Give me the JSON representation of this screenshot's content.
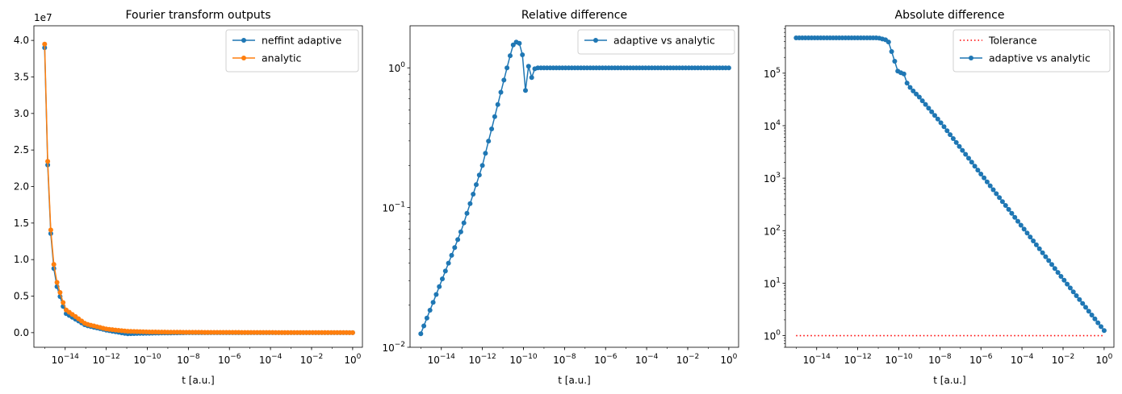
{
  "chart_data": [
    {
      "type": "line",
      "title": "Fourier transform outputs",
      "xlabel": "t [a.u.]",
      "ylabel": "",
      "xscale": "log",
      "yscale": "linear",
      "y_offset_label": "1e7",
      "xlim": [
        3e-16,
        3
      ],
      "ylim": [
        -2000000,
        42000000
      ],
      "xticks": [
        "10^-14",
        "10^-12",
        "10^-10",
        "10^-8",
        "10^-6",
        "10^-4",
        "10^-2",
        "10^0"
      ],
      "yticks": [
        "0.0",
        "0.5",
        "1.0",
        "1.5",
        "2.0",
        "2.5",
        "3.0",
        "3.5",
        "4.0"
      ],
      "legend": "top-right",
      "grid": false,
      "x_exponent_range": [
        -15,
        0
      ],
      "points_per_series": 101,
      "series": [
        {
          "name": "neffint adaptive",
          "color": "#1f77b4",
          "marker": "circle",
          "sample_x": [
            1e-15,
            1.12e-15,
            1.26e-15,
            1.41e-15,
            1.58e-15,
            2e-15,
            3.16e-15,
            1e-14,
            1e-13,
            1e-12,
            1e-11,
            1e-10,
            1e-08,
            1
          ],
          "sample_y": [
            39000000,
            32800000,
            27500000,
            23000000,
            19200000,
            13500000,
            7200000,
            2700000,
            1000000,
            350000,
            -150000,
            -80000,
            0,
            0
          ]
        },
        {
          "name": "analytic",
          "color": "#ff7f0e",
          "marker": "circle",
          "sample_x": [
            1e-15,
            1.12e-15,
            1.26e-15,
            1.41e-15,
            1.58e-15,
            2e-15,
            3.16e-15,
            1e-14,
            1e-13,
            1e-12,
            1e-11,
            1e-10,
            1e-08,
            1
          ],
          "sample_y": [
            39500000,
            33300000,
            28000000,
            23500000,
            19700000,
            14000000,
            7800000,
            3200000,
            1200000,
            500000,
            200000,
            100000,
            50000,
            0
          ]
        }
      ]
    },
    {
      "type": "line",
      "title": "Relative difference",
      "xlabel": "t [a.u.]",
      "ylabel": "",
      "xscale": "log",
      "yscale": "log",
      "xlim": [
        3e-16,
        3
      ],
      "ylim": [
        0.01,
        2
      ],
      "xticks": [
        "10^-14",
        "10^-12",
        "10^-10",
        "10^-8",
        "10^-6",
        "10^-4",
        "10^-2",
        "10^0"
      ],
      "yticks": [
        "10^-2",
        "10^-1",
        "10^0"
      ],
      "legend": "top-right",
      "grid": false,
      "x_exponent_range": [
        -15,
        0
      ],
      "points_per_series": 101,
      "series": [
        {
          "name": "adaptive vs analytic",
          "color": "#1f77b4",
          "marker": "circle",
          "sample_x": [
            1e-15,
            1e-13,
            1e-12,
            3e-11,
            5e-11,
            8e-11,
            1e-10,
            1.3e-10,
            1.6e-10,
            2e-10,
            2.5e-10,
            3.2e-10,
            4e-10,
            5e-10,
            1e-09,
            1e-08,
            1e-06,
            1
          ],
          "sample_y": [
            0.0125,
            0.07,
            0.2,
            1.45,
            1.55,
            1.45,
            1.05,
            0.65,
            0.95,
            1.12,
            0.85,
            0.97,
            1.0,
            1.0,
            1.0,
            1.0,
            1.0,
            1.0
          ]
        }
      ]
    },
    {
      "type": "line",
      "title": "Absolute difference",
      "xlabel": "t [a.u.]",
      "ylabel": "",
      "xscale": "log",
      "yscale": "log",
      "xlim": [
        3e-16,
        3
      ],
      "ylim": [
        0.6,
        800000.0
      ],
      "xticks": [
        "10^-14",
        "10^-12",
        "10^-10",
        "10^-8",
        "10^-6",
        "10^-4",
        "10^-2",
        "10^0"
      ],
      "yticks": [
        "10^0",
        "10^1",
        "10^2",
        "10^3",
        "10^4",
        "10^5"
      ],
      "legend": "top-right",
      "grid": false,
      "x_exponent_range": [
        -15,
        0
      ],
      "points_per_series": 101,
      "series": [
        {
          "name": "Tolerance",
          "color": "#ff0000",
          "style": "dotted",
          "sample_x": [
            1e-15,
            1
          ],
          "sample_y": [
            1,
            1
          ]
        },
        {
          "name": "adaptive vs analytic",
          "color": "#1f77b4",
          "marker": "circle",
          "sample_x": [
            1e-15,
            1e-11,
            3e-11,
            6e-11,
            1e-10,
            1.6e-10,
            2.5e-10,
            4e-10,
            1e-09,
            1e-08,
            1e-06,
            0.0001,
            0.01,
            1
          ],
          "sample_y": [
            470000,
            470000,
            420000,
            180000,
            95000,
            110000,
            65000,
            50000,
            35000,
            12000,
            1200,
            120,
            12,
            1.25
          ]
        }
      ]
    }
  ]
}
